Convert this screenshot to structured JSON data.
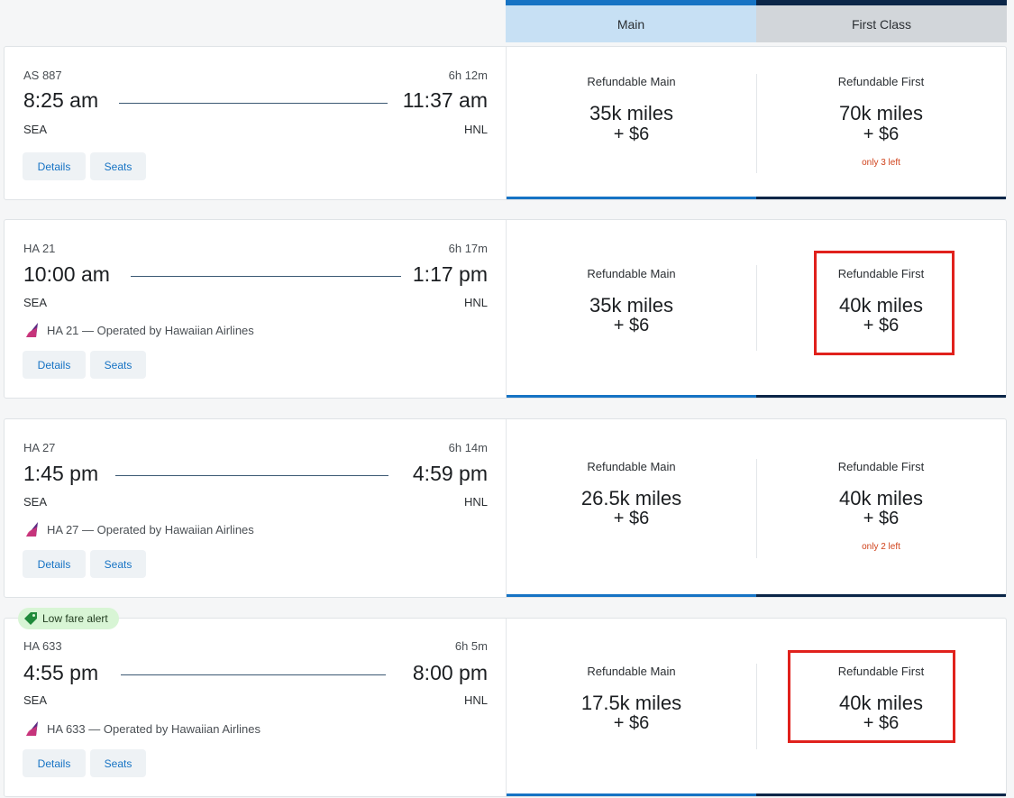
{
  "columns": {
    "main": "Main",
    "first": "First Class"
  },
  "buttons": {
    "details": "Details",
    "seats": "Seats"
  },
  "alert": {
    "label": "Low fare alert"
  },
  "flights": [
    {
      "flight_no": "AS 887",
      "duration": "6h 12m",
      "depart_time": "8:25 am",
      "arrive_time": "11:37 am",
      "origin": "SEA",
      "destination": "HNL",
      "operator": "",
      "main_label": "Refundable Main",
      "main_miles": "35k miles",
      "main_fee": "+ $6",
      "main_note": "",
      "first_label": "Refundable First",
      "first_miles": "70k miles",
      "first_fee": "+ $6",
      "first_note": "only 3 left"
    },
    {
      "flight_no": "HA 21",
      "duration": "6h 17m",
      "depart_time": "10:00 am",
      "arrive_time": "1:17 pm",
      "origin": "SEA",
      "destination": "HNL",
      "operator": "HA 21 — Operated by Hawaiian Airlines",
      "main_label": "Refundable Main",
      "main_miles": "35k miles",
      "main_fee": "+ $6",
      "main_note": "",
      "first_label": "Refundable First",
      "first_miles": "40k miles",
      "first_fee": "+ $6",
      "first_note": ""
    },
    {
      "flight_no": "HA 27",
      "duration": "6h 14m",
      "depart_time": "1:45 pm",
      "arrive_time": "4:59 pm",
      "origin": "SEA",
      "destination": "HNL",
      "operator": "HA 27 — Operated by Hawaiian Airlines",
      "main_label": "Refundable Main",
      "main_miles": "26.5k miles",
      "main_fee": "+ $6",
      "main_note": "",
      "first_label": "Refundable First",
      "first_miles": "40k miles",
      "first_fee": "+ $6",
      "first_note": "only 2 left"
    },
    {
      "flight_no": "HA 633",
      "duration": "6h 5m",
      "depart_time": "4:55 pm",
      "arrive_time": "8:00 pm",
      "origin": "SEA",
      "destination": "HNL",
      "operator": "HA 633 — Operated by Hawaiian Airlines",
      "main_label": "Refundable Main",
      "main_miles": "17.5k miles",
      "main_fee": "+ $6",
      "main_note": "",
      "first_label": "Refundable First",
      "first_miles": "40k miles",
      "first_fee": "+ $6",
      "first_note": ""
    }
  ],
  "colors": {
    "accent": "#1673c4",
    "navy": "#0b2648",
    "highlight": "#e0211c",
    "alert_bg": "#d8f5d5"
  }
}
